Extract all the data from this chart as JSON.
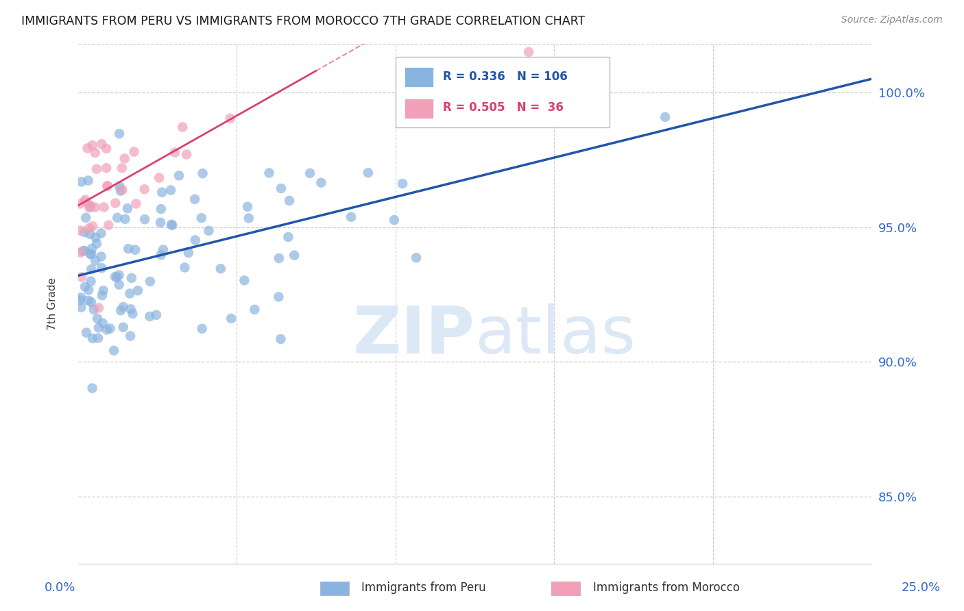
{
  "title": "IMMIGRANTS FROM PERU VS IMMIGRANTS FROM MOROCCO 7TH GRADE CORRELATION CHART",
  "source": "Source: ZipAtlas.com",
  "ylabel": "7th Grade",
  "xlim": [
    0.0,
    25.0
  ],
  "ylim": [
    82.5,
    101.8
  ],
  "yticks": [
    85.0,
    90.0,
    95.0,
    100.0
  ],
  "ytick_labels": [
    "85.0%",
    "90.0%",
    "95.0%",
    "100.0%"
  ],
  "peru_color": "#8ab4e0",
  "morocco_color": "#f2a0b8",
  "peru_line_color": "#2255aa",
  "morocco_line_color": "#d94070",
  "grid_color": "#cccccc",
  "title_color": "#1a1a1a",
  "axis_label_color": "#3366cc",
  "watermark_color": "#dce8f5",
  "peru_r": 0.336,
  "peru_n": 106,
  "morocco_r": 0.505,
  "morocco_n": 36,
  "peru_line_x0": 0.0,
  "peru_line_y0": 93.2,
  "peru_line_x1": 25.0,
  "peru_line_y1": 100.5,
  "morocco_line_x0": 0.0,
  "morocco_line_y0": 95.8,
  "morocco_line_x1": 7.5,
  "morocco_line_y1": 100.8
}
